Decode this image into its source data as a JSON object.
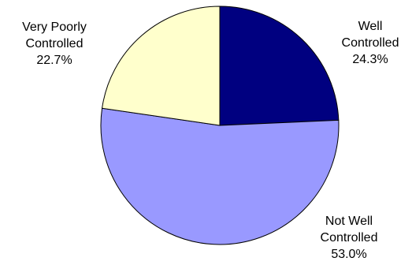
{
  "chart_data": {
    "type": "pie",
    "slices": [
      {
        "label_lines": [
          "Well",
          "Controlled"
        ],
        "pct_label": "24.3%",
        "value": 24.3,
        "color": "#000080"
      },
      {
        "label_lines": [
          "Not Well",
          "Controlled"
        ],
        "pct_label": "53.0%",
        "value": 53.0,
        "color": "#9999ff"
      },
      {
        "label_lines": [
          "Very Poorly",
          "Controlled"
        ],
        "pct_label": "22.7%",
        "value": 22.7,
        "color": "#ffffcc"
      }
    ],
    "start_angle_deg": 0,
    "direction": "clockwise",
    "outline_color": "#000000"
  }
}
